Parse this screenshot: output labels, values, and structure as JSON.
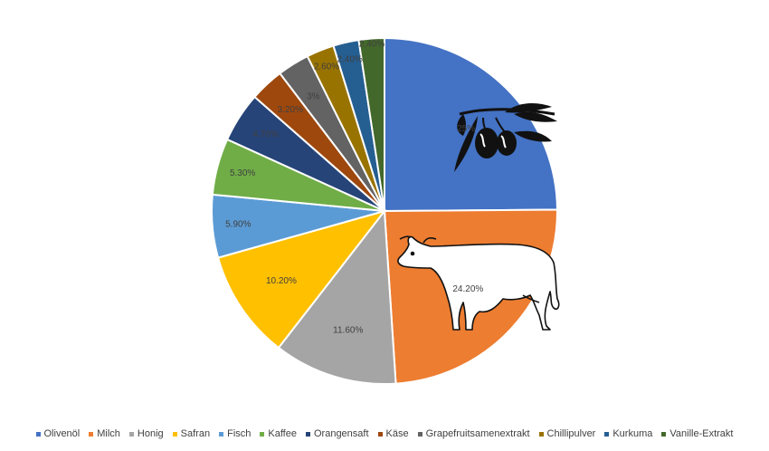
{
  "chart_data": {
    "type": "pie",
    "title": "",
    "legend_position": "bottom",
    "slices": [
      {
        "name": "Olivenöl",
        "value": 25,
        "label": "25%",
        "color": "#4472C4",
        "icon": "olive-branch-icon"
      },
      {
        "name": "Milch",
        "value": 24.2,
        "label": "24.20%",
        "color": "#ED7D31",
        "icon": "cow-icon"
      },
      {
        "name": "Honig",
        "value": 11.6,
        "label": "11.60%",
        "color": "#A5A5A5"
      },
      {
        "name": "Safran",
        "value": 10.2,
        "label": "10.20%",
        "color": "#FFC000"
      },
      {
        "name": "Fisch",
        "value": 5.9,
        "label": "5.90%",
        "color": "#5B9BD5"
      },
      {
        "name": "Kaffee",
        "value": 5.3,
        "label": "5.30%",
        "color": "#70AD47"
      },
      {
        "name": "Orangensaft",
        "value": 4.7,
        "label": "4.70%",
        "color": "#264478"
      },
      {
        "name": "Käse",
        "value": 3.2,
        "label": "3.20%",
        "color": "#9E480E"
      },
      {
        "name": "Grapefruitsamenextrakt",
        "value": 3,
        "label": "3%",
        "color": "#636363"
      },
      {
        "name": "Chillipulver",
        "value": 2.6,
        "label": "2.60%",
        "color": "#997300"
      },
      {
        "name": "Kurkuma",
        "value": 2.4,
        "label": "2.40%",
        "color": "#255E91"
      },
      {
        "name": "Vanille-Extrakt",
        "value": 2.4,
        "label": "2.40%",
        "color": "#43682B"
      }
    ]
  }
}
